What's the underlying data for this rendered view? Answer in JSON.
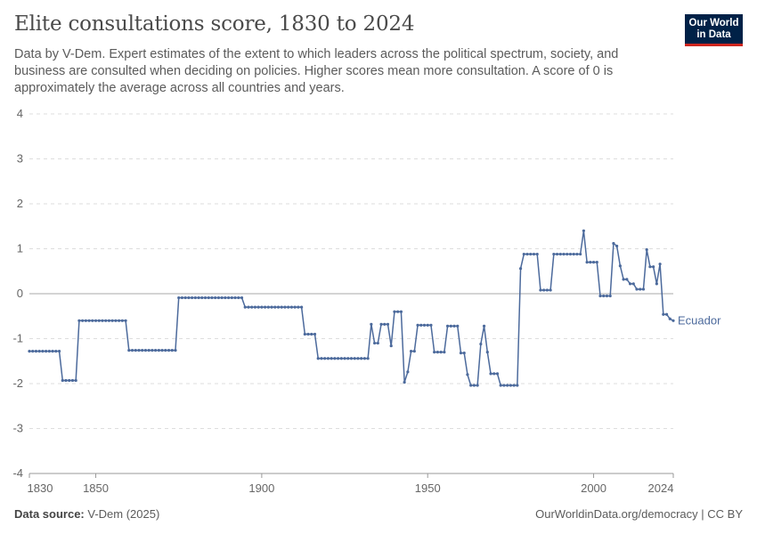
{
  "header": {
    "title": "Elite consultations score, 1830 to 2024",
    "subtitle": "Data by V-Dem. Expert estimates of the extent to which leaders across the political spectrum, society, and business are consulted when deciding on policies. Higher scores mean more consultation. A score of 0 is approximately the average across all countries and years.",
    "logo_line1": "Our World",
    "logo_line2": "in Data"
  },
  "footer": {
    "source_label": "Data source:",
    "source_value": "V-Dem (2025)",
    "link": "OurWorldinData.org/democracy | CC BY"
  },
  "colors": {
    "series": "#4c6a9c",
    "grid": "#dddddd",
    "zero_line": "#a8a8a8",
    "axis": "#999999",
    "tick_text": "#666666"
  },
  "chart_data": {
    "type": "line",
    "title": "Elite consultations score, 1830 to 2024",
    "xlabel": "",
    "ylabel": "",
    "xlim": [
      1830,
      2024
    ],
    "ylim": [
      -4,
      4
    ],
    "x_ticks": [
      1830,
      1850,
      1900,
      1950,
      2000,
      2024
    ],
    "y_ticks": [
      -4,
      -3,
      -2,
      -1,
      0,
      1,
      2,
      3,
      4
    ],
    "y_tick_labels": [
      "-4",
      "-3",
      "-2",
      "-1",
      "0",
      "1",
      "2",
      "3",
      "4"
    ],
    "grid": true,
    "series": [
      {
        "name": "Ecuador",
        "segments": [
          {
            "from": 1830,
            "to": 1839,
            "value": -1.28
          },
          {
            "from": 1840,
            "to": 1844,
            "value": -1.93
          },
          {
            "from": 1845,
            "to": 1859,
            "value": -0.6
          },
          {
            "from": 1860,
            "to": 1874,
            "value": -1.26
          },
          {
            "from": 1875,
            "to": 1894,
            "value": -0.09
          },
          {
            "from": 1895,
            "to": 1912,
            "value": -0.3
          },
          {
            "from": 1913,
            "to": 1916,
            "value": -0.9
          },
          {
            "from": 1917,
            "to": 1932,
            "value": -1.44
          }
        ],
        "points": [
          [
            1933,
            -0.68
          ],
          [
            1934,
            -1.1
          ],
          [
            1935,
            -1.1
          ],
          [
            1936,
            -0.68
          ],
          [
            1937,
            -0.68
          ],
          [
            1938,
            -0.68
          ],
          [
            1939,
            -1.16
          ],
          [
            1940,
            -0.4
          ],
          [
            1941,
            -0.4
          ],
          [
            1942,
            -0.4
          ],
          [
            1943,
            -1.97
          ],
          [
            1944,
            -1.74
          ],
          [
            1945,
            -1.28
          ],
          [
            1946,
            -1.28
          ],
          [
            1947,
            -0.7
          ],
          [
            1948,
            -0.7
          ],
          [
            1949,
            -0.7
          ],
          [
            1950,
            -0.7
          ],
          [
            1951,
            -0.7
          ],
          [
            1952,
            -1.3
          ],
          [
            1953,
            -1.3
          ],
          [
            1954,
            -1.3
          ],
          [
            1955,
            -1.3
          ],
          [
            1956,
            -0.72
          ],
          [
            1957,
            -0.72
          ],
          [
            1958,
            -0.72
          ],
          [
            1959,
            -0.72
          ],
          [
            1960,
            -1.32
          ],
          [
            1961,
            -1.32
          ],
          [
            1962,
            -1.8
          ],
          [
            1963,
            -2.04
          ],
          [
            1964,
            -2.04
          ],
          [
            1965,
            -2.04
          ],
          [
            1966,
            -1.12
          ],
          [
            1967,
            -0.72
          ],
          [
            1968,
            -1.3
          ],
          [
            1969,
            -1.78
          ],
          [
            1970,
            -1.78
          ],
          [
            1971,
            -1.78
          ],
          [
            1972,
            -2.04
          ],
          [
            1973,
            -2.04
          ],
          [
            1974,
            -2.04
          ],
          [
            1975,
            -2.04
          ],
          [
            1976,
            -2.04
          ],
          [
            1977,
            -2.04
          ],
          [
            1978,
            0.56
          ],
          [
            1979,
            0.88
          ],
          [
            1980,
            0.88
          ],
          [
            1981,
            0.88
          ],
          [
            1982,
            0.88
          ],
          [
            1983,
            0.88
          ],
          [
            1984,
            0.08
          ],
          [
            1985,
            0.08
          ],
          [
            1986,
            0.08
          ],
          [
            1987,
            0.08
          ],
          [
            1988,
            0.88
          ],
          [
            1989,
            0.88
          ],
          [
            1990,
            0.88
          ],
          [
            1991,
            0.88
          ],
          [
            1992,
            0.88
          ],
          [
            1993,
            0.88
          ],
          [
            1994,
            0.88
          ],
          [
            1995,
            0.88
          ],
          [
            1996,
            0.88
          ],
          [
            1997,
            1.4
          ],
          [
            1998,
            0.7
          ],
          [
            1999,
            0.7
          ],
          [
            2000,
            0.7
          ],
          [
            2001,
            0.7
          ],
          [
            2002,
            -0.05
          ],
          [
            2003,
            -0.05
          ],
          [
            2004,
            -0.05
          ],
          [
            2005,
            -0.05
          ],
          [
            2006,
            1.12
          ],
          [
            2007,
            1.06
          ],
          [
            2008,
            0.62
          ],
          [
            2009,
            0.32
          ],
          [
            2010,
            0.32
          ],
          [
            2011,
            0.22
          ],
          [
            2012,
            0.22
          ],
          [
            2013,
            0.1
          ],
          [
            2014,
            0.1
          ],
          [
            2015,
            0.1
          ],
          [
            2016,
            0.98
          ],
          [
            2017,
            0.6
          ],
          [
            2018,
            0.6
          ],
          [
            2019,
            0.22
          ],
          [
            2020,
            0.66
          ],
          [
            2021,
            -0.46
          ],
          [
            2022,
            -0.46
          ],
          [
            2023,
            -0.56
          ],
          [
            2024,
            -0.6
          ]
        ],
        "end_label": "Ecuador"
      }
    ]
  }
}
